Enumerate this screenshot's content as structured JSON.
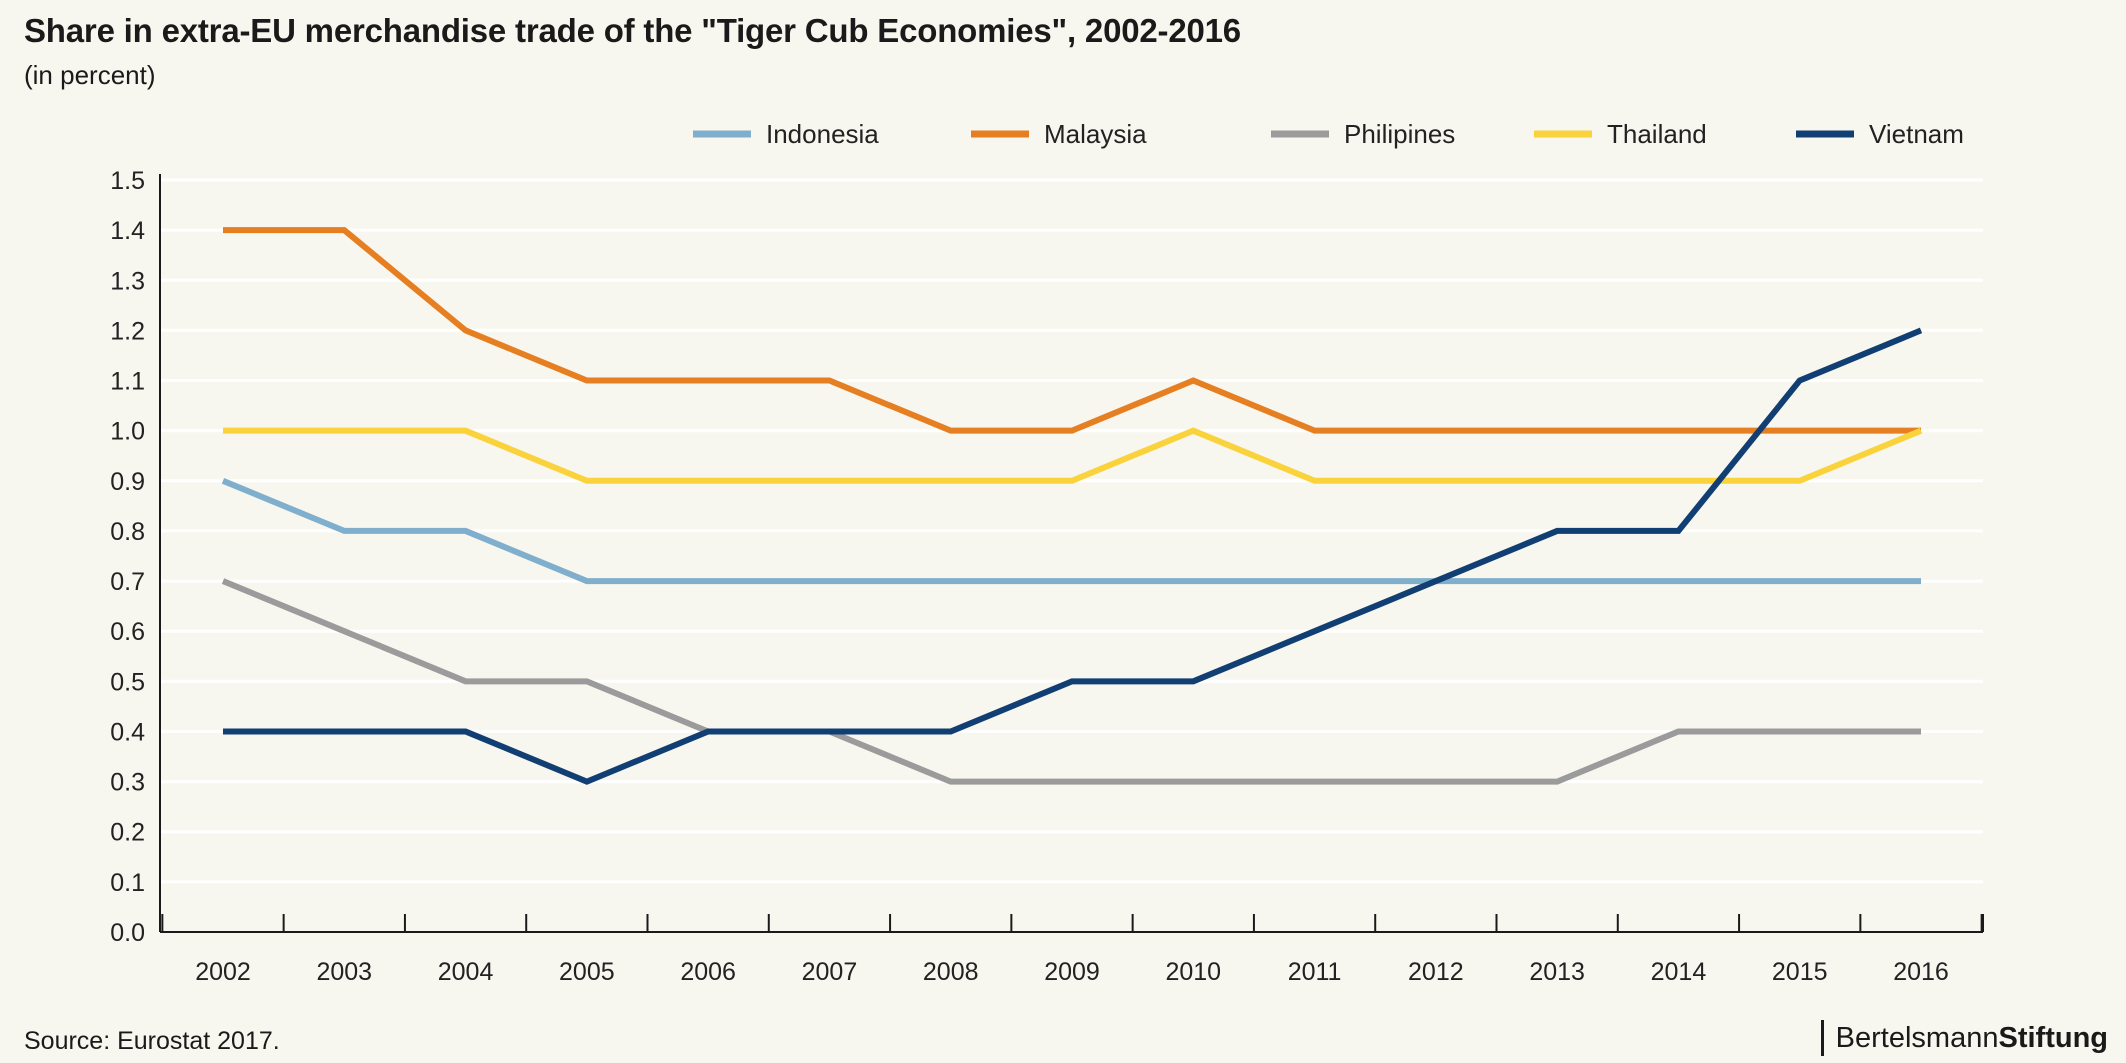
{
  "header": {
    "title": "Share in extra-EU merchandise trade of the \"Tiger Cub Economies\", 2002-2016",
    "subtitle": "(in percent)"
  },
  "footer": {
    "source": "Source: Eurostat 2017.",
    "brand_part1": "Bertelsmann",
    "brand_part2": "Stiftung"
  },
  "chart_data": {
    "type": "line",
    "title": "Share in extra-EU merchandise trade of the \"Tiger Cub Economies\", 2002-2016",
    "subtitle": "(in percent)",
    "xlabel": "",
    "ylabel": "",
    "x": [
      "2002",
      "2003",
      "2004",
      "2005",
      "2006",
      "2007",
      "2008",
      "2009",
      "2010",
      "2011",
      "2012",
      "2013",
      "2014",
      "2015",
      "2016"
    ],
    "ylim": [
      0,
      1.5
    ],
    "yticks": [
      "0.0",
      "0.1",
      "0.2",
      "0.3",
      "0.4",
      "0.5",
      "0.6",
      "0.7",
      "0.8",
      "0.9",
      "1.0",
      "1.1",
      "1.2",
      "1.3",
      "1.4",
      "1.5"
    ],
    "grid": true,
    "legend_position": "top-right",
    "series": [
      {
        "name": "Indonesia",
        "color": "#7fafcc",
        "values": [
          0.9,
          0.8,
          0.8,
          0.7,
          0.7,
          0.7,
          0.7,
          0.7,
          0.7,
          0.7,
          0.7,
          0.7,
          0.7,
          0.7,
          0.7
        ]
      },
      {
        "name": "Malaysia",
        "color": "#e67e22",
        "values": [
          1.4,
          1.4,
          1.2,
          1.1,
          1.1,
          1.1,
          1.0,
          1.0,
          1.1,
          1.0,
          1.0,
          1.0,
          1.0,
          1.0,
          1.0
        ]
      },
      {
        "name": "Philipines",
        "color": "#9b9b9b",
        "values": [
          0.7,
          0.6,
          0.5,
          0.5,
          0.4,
          0.4,
          0.3,
          0.3,
          0.3,
          0.3,
          0.3,
          0.3,
          0.4,
          0.4,
          0.4
        ]
      },
      {
        "name": "Thailand",
        "color": "#f9d23c",
        "values": [
          1.0,
          1.0,
          1.0,
          0.9,
          0.9,
          0.9,
          0.9,
          0.9,
          1.0,
          0.9,
          0.9,
          0.9,
          0.9,
          0.9,
          1.0
        ]
      },
      {
        "name": "Vietnam",
        "color": "#123f73",
        "values": [
          0.4,
          0.4,
          0.4,
          0.3,
          0.4,
          0.4,
          0.4,
          0.5,
          0.5,
          0.6,
          0.7,
          0.8,
          0.8,
          1.1,
          1.2
        ]
      }
    ]
  }
}
